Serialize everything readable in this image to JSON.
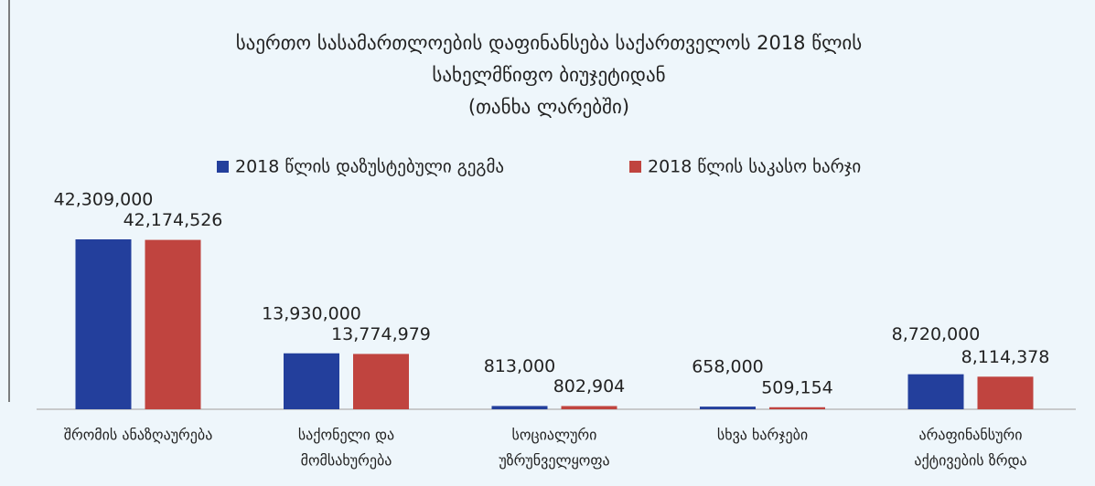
{
  "chart_data": {
    "type": "bar",
    "title": [
      "საერთო სასამართლოების დაფინანსება საქართველოს 2018 წლის",
      "სახელმწიფო ბიუჯეტიდან",
      "(თანხა ლარებში)"
    ],
    "categories": [
      [
        "შრომის ანაზღაურება"
      ],
      [
        "საქონელი და",
        "მომსახურება"
      ],
      [
        "სოციალური",
        "უზრუნველყოფა"
      ],
      [
        "სხვა ხარჯები"
      ],
      [
        "არაფინანსური",
        "აქტივების ზრდა"
      ]
    ],
    "series": [
      {
        "name": "2018 წლის დაზუსტებული  გეგმა",
        "color": "#233f9c",
        "values": [
          42309000,
          13930000,
          813000,
          658000,
          8720000
        ],
        "value_labels": [
          "42,309,000",
          "13,930,000",
          "813,000",
          "658,000",
          "8,720,000"
        ]
      },
      {
        "name": "2018 წლის საკასო ხარჯი",
        "color": "#c0443f",
        "values": [
          42174526,
          13774979,
          802904,
          509154,
          8114378
        ],
        "value_labels": [
          "42,174,526",
          "13,774,979",
          "802,904",
          "509,154",
          "8,114,378"
        ]
      }
    ]
  }
}
